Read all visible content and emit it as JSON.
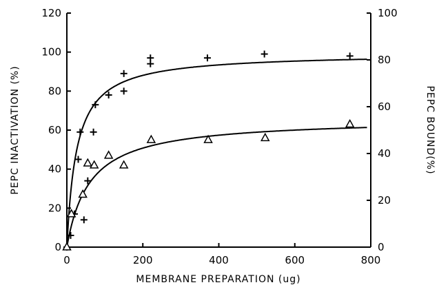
{
  "chart_data": {
    "type": "scatter",
    "xlabel": "MEMBRANE PREPARATION (ug)",
    "ylabel_left": "PEPC INACTIVATION (%)",
    "ylabel_right": "PEPC BOUND(%)",
    "xlim": [
      0,
      800
    ],
    "ylim_left": [
      0,
      120
    ],
    "ylim_right": [
      0,
      100
    ],
    "x_ticks": [
      0,
      200,
      400,
      600,
      800
    ],
    "y_left_ticks": [
      0,
      20,
      40,
      60,
      80,
      100,
      120
    ],
    "y_right_ticks": [
      0,
      20,
      40,
      60,
      80,
      100
    ],
    "grid": false,
    "series": [
      {
        "marker": "plus",
        "points": [
          [
            0,
            0
          ],
          [
            10,
            6
          ],
          [
            20,
            17
          ],
          [
            30,
            45
          ],
          [
            35,
            59
          ],
          [
            45,
            14
          ],
          [
            55,
            34
          ],
          [
            70,
            59
          ],
          [
            75,
            73
          ],
          [
            110,
            78
          ],
          [
            150,
            80
          ],
          [
            150,
            89
          ],
          [
            220,
            94
          ],
          [
            220,
            97
          ],
          [
            370,
            97
          ],
          [
            520,
            99
          ],
          [
            745,
            98
          ]
        ]
      },
      {
        "marker": "triangle",
        "points": [
          [
            0,
            0
          ],
          [
            12,
            17
          ],
          [
            42,
            27
          ],
          [
            55,
            43
          ],
          [
            72,
            42
          ],
          [
            110,
            47
          ],
          [
            150,
            42
          ],
          [
            222,
            55
          ],
          [
            372,
            55
          ],
          [
            522,
            56
          ],
          [
            745,
            63
          ]
        ]
      }
    ],
    "curves": [
      {
        "for_marker": "plus",
        "ymax": 99.5,
        "k": 26
      },
      {
        "for_marker": "triangle",
        "ymax": 66,
        "k": 60
      }
    ]
  }
}
